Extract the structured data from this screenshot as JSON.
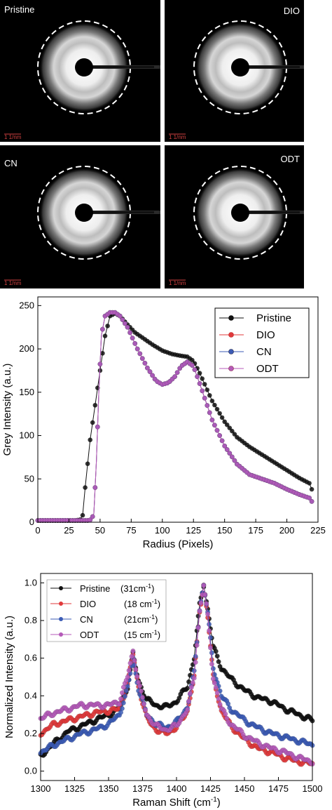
{
  "diffraction_panels": [
    {
      "label": "Pristine",
      "label_side": "left",
      "scale_label": "1 1/nm"
    },
    {
      "label": "DIO",
      "label_side": "right",
      "scale_label": "1 1/nm"
    },
    {
      "label": "CN",
      "label_side": "left",
      "scale_label": "1 1/nm"
    },
    {
      "label": "ODT",
      "label_side": "right",
      "scale_label": "1 1/nm"
    }
  ],
  "chart_data": [
    {
      "type": "line",
      "xlabel": "Radius (Pixels)",
      "ylabel": "Grey Intensity (a.u.)",
      "xlim": [
        0,
        225
      ],
      "ylim": [
        0,
        260
      ],
      "xticks": [
        0,
        25,
        50,
        75,
        100,
        125,
        150,
        175,
        200,
        225
      ],
      "yticks": [
        0,
        50,
        100,
        150,
        200,
        250
      ],
      "legend_position": "top-right",
      "series": [
        {
          "name": "Pristine",
          "color": "#111111",
          "points": [
            [
              0,
              2
            ],
            [
              30,
              2
            ],
            [
              34,
              3
            ],
            [
              36,
              8
            ],
            [
              38,
              40
            ],
            [
              42,
              95
            ],
            [
              46,
              135
            ],
            [
              50,
              175
            ],
            [
              54,
              215
            ],
            [
              58,
              238
            ],
            [
              62,
              241
            ],
            [
              66,
              238
            ],
            [
              72,
              228
            ],
            [
              78,
              219
            ],
            [
              85,
              212
            ],
            [
              92,
              205
            ],
            [
              100,
              198
            ],
            [
              108,
              194
            ],
            [
              115,
              192
            ],
            [
              120,
              191
            ],
            [
              125,
              186
            ],
            [
              130,
              172
            ],
            [
              140,
              140
            ],
            [
              150,
              116
            ],
            [
              160,
              98
            ],
            [
              170,
              87
            ],
            [
              180,
              78
            ],
            [
              190,
              69
            ],
            [
              200,
              60
            ],
            [
              210,
              51
            ],
            [
              218,
              45
            ],
            [
              220,
              38
            ]
          ]
        },
        {
          "name": "DIO",
          "color": "#e0393b",
          "points": [
            [
              0,
              2
            ],
            [
              40,
              2
            ],
            [
              43,
              3
            ],
            [
              45,
              10
            ],
            [
              47,
              70
            ],
            [
              49,
              150
            ],
            [
              51,
              215
            ],
            [
              54,
              238
            ],
            [
              58,
              242
            ],
            [
              62,
              242
            ],
            [
              66,
              238
            ],
            [
              72,
              225
            ],
            [
              80,
              200
            ],
            [
              88,
              178
            ],
            [
              95,
              163
            ],
            [
              100,
              159
            ],
            [
              105,
              161
            ],
            [
              110,
              168
            ],
            [
              115,
              180
            ],
            [
              120,
              185
            ],
            [
              125,
              180
            ],
            [
              130,
              160
            ],
            [
              140,
              118
            ],
            [
              150,
              88
            ],
            [
              160,
              67
            ],
            [
              170,
              55
            ],
            [
              180,
              50
            ],
            [
              190,
              45
            ],
            [
              200,
              38
            ],
            [
              210,
              32
            ],
            [
              218,
              28
            ],
            [
              220,
              24
            ]
          ]
        },
        {
          "name": "CN",
          "color": "#3b5bb5",
          "points": [
            [
              0,
              2
            ],
            [
              40,
              2
            ],
            [
              43,
              3
            ],
            [
              45,
              10
            ],
            [
              47,
              70
            ],
            [
              49,
              150
            ],
            [
              51,
              215
            ],
            [
              54,
              238
            ],
            [
              58,
              242
            ],
            [
              62,
              242
            ],
            [
              66,
              238
            ],
            [
              72,
              225
            ],
            [
              80,
              200
            ],
            [
              88,
              178
            ],
            [
              95,
              163
            ],
            [
              100,
              159
            ],
            [
              105,
              161
            ],
            [
              110,
              168
            ],
            [
              115,
              180
            ],
            [
              120,
              185
            ],
            [
              125,
              180
            ],
            [
              130,
              160
            ],
            [
              140,
              118
            ],
            [
              150,
              88
            ],
            [
              160,
              67
            ],
            [
              170,
              55
            ],
            [
              180,
              50
            ],
            [
              190,
              45
            ],
            [
              200,
              38
            ],
            [
              210,
              32
            ],
            [
              218,
              28
            ],
            [
              220,
              24
            ]
          ]
        },
        {
          "name": "ODT",
          "color": "#b45ab8",
          "points": [
            [
              0,
              2
            ],
            [
              40,
              2
            ],
            [
              43,
              3
            ],
            [
              45,
              10
            ],
            [
              47,
              70
            ],
            [
              49,
              150
            ],
            [
              51,
              215
            ],
            [
              54,
              238
            ],
            [
              58,
              242
            ],
            [
              62,
              242
            ],
            [
              66,
              238
            ],
            [
              72,
              225
            ],
            [
              80,
              200
            ],
            [
              88,
              178
            ],
            [
              95,
              163
            ],
            [
              100,
              159
            ],
            [
              105,
              161
            ],
            [
              110,
              168
            ],
            [
              115,
              180
            ],
            [
              120,
              185
            ],
            [
              125,
              180
            ],
            [
              130,
              160
            ],
            [
              140,
              118
            ],
            [
              150,
              88
            ],
            [
              160,
              67
            ],
            [
              170,
              55
            ],
            [
              180,
              50
            ],
            [
              190,
              45
            ],
            [
              200,
              38
            ],
            [
              210,
              32
            ],
            [
              218,
              28
            ],
            [
              220,
              24
            ]
          ]
        }
      ]
    },
    {
      "type": "line",
      "xlabel": "Raman Shift (cm",
      "xlabel_sup": "-1",
      "xlabel_end": ")",
      "ylabel": "Normalized Intensity (a.u.)",
      "xlim": [
        1300,
        1500
      ],
      "ylim": [
        -0.05,
        1.05
      ],
      "xticks": [
        1300,
        1325,
        1350,
        1375,
        1400,
        1425,
        1450,
        1475,
        1500
      ],
      "yticks": [
        0.0,
        0.2,
        0.4,
        0.6,
        0.8,
        1.0
      ],
      "ytick_labels": [
        "0.0",
        "0.2",
        "0.4",
        "0.6",
        "0.8",
        "1.0"
      ],
      "legend_position": "top-left",
      "series": [
        {
          "name": "Pristine",
          "fwhm": "(31cm",
          "fwhm_sup": "-1",
          "fwhm_end": ")",
          "color": "#111111",
          "points": [
            [
              1300,
              0.08
            ],
            [
              1310,
              0.15
            ],
            [
              1320,
              0.21
            ],
            [
              1330,
              0.24
            ],
            [
              1340,
              0.27
            ],
            [
              1350,
              0.3
            ],
            [
              1358,
              0.33
            ],
            [
              1364,
              0.45
            ],
            [
              1368,
              0.62
            ],
            [
              1372,
              0.48
            ],
            [
              1378,
              0.38
            ],
            [
              1385,
              0.35
            ],
            [
              1392,
              0.34
            ],
            [
              1400,
              0.37
            ],
            [
              1408,
              0.45
            ],
            [
              1413,
              0.6
            ],
            [
              1417,
              0.88
            ],
            [
              1420,
              0.99
            ],
            [
              1423,
              0.86
            ],
            [
              1427,
              0.66
            ],
            [
              1433,
              0.55
            ],
            [
              1440,
              0.49
            ],
            [
              1450,
              0.43
            ],
            [
              1460,
              0.39
            ],
            [
              1470,
              0.37
            ],
            [
              1480,
              0.33
            ],
            [
              1490,
              0.3
            ],
            [
              1500,
              0.27
            ]
          ]
        },
        {
          "name": "DIO",
          "fwhm": "(18 cm",
          "fwhm_sup": "-1",
          "fwhm_end": ")",
          "color": "#e0393b",
          "points": [
            [
              1300,
              0.2
            ],
            [
              1310,
              0.25
            ],
            [
              1320,
              0.27
            ],
            [
              1330,
              0.29
            ],
            [
              1340,
              0.31
            ],
            [
              1350,
              0.32
            ],
            [
              1358,
              0.33
            ],
            [
              1364,
              0.46
            ],
            [
              1368,
              0.62
            ],
            [
              1372,
              0.45
            ],
            [
              1378,
              0.28
            ],
            [
              1385,
              0.22
            ],
            [
              1392,
              0.2
            ],
            [
              1400,
              0.23
            ],
            [
              1408,
              0.32
            ],
            [
              1413,
              0.5
            ],
            [
              1417,
              0.85
            ],
            [
              1420,
              0.99
            ],
            [
              1423,
              0.82
            ],
            [
              1427,
              0.5
            ],
            [
              1433,
              0.32
            ],
            [
              1440,
              0.24
            ],
            [
              1450,
              0.17
            ],
            [
              1460,
              0.12
            ],
            [
              1470,
              0.1
            ],
            [
              1480,
              0.07
            ],
            [
              1490,
              0.05
            ],
            [
              1500,
              0.04
            ]
          ]
        },
        {
          "name": "CN",
          "fwhm": "(21cm",
          "fwhm_sup": "-1",
          "fwhm_end": ")",
          "color": "#3b5bb5",
          "points": [
            [
              1300,
              0.1
            ],
            [
              1310,
              0.14
            ],
            [
              1320,
              0.17
            ],
            [
              1330,
              0.2
            ],
            [
              1340,
              0.22
            ],
            [
              1350,
              0.25
            ],
            [
              1358,
              0.3
            ],
            [
              1364,
              0.44
            ],
            [
              1368,
              0.6
            ],
            [
              1372,
              0.44
            ],
            [
              1378,
              0.3
            ],
            [
              1385,
              0.25
            ],
            [
              1392,
              0.23
            ],
            [
              1400,
              0.26
            ],
            [
              1408,
              0.34
            ],
            [
              1413,
              0.52
            ],
            [
              1417,
              0.86
            ],
            [
              1420,
              0.99
            ],
            [
              1423,
              0.84
            ],
            [
              1427,
              0.55
            ],
            [
              1433,
              0.4
            ],
            [
              1440,
              0.33
            ],
            [
              1450,
              0.27
            ],
            [
              1460,
              0.23
            ],
            [
              1470,
              0.2
            ],
            [
              1480,
              0.18
            ],
            [
              1490,
              0.16
            ],
            [
              1500,
              0.14
            ]
          ]
        },
        {
          "name": "ODT",
          "fwhm": "(15 cm",
          "fwhm_sup": "-1",
          "fwhm_end": ")",
          "color": "#b45ab8",
          "points": [
            [
              1300,
              0.28
            ],
            [
              1310,
              0.31
            ],
            [
              1320,
              0.33
            ],
            [
              1330,
              0.35
            ],
            [
              1340,
              0.35
            ],
            [
              1350,
              0.35
            ],
            [
              1358,
              0.37
            ],
            [
              1364,
              0.5
            ],
            [
              1368,
              0.64
            ],
            [
              1372,
              0.47
            ],
            [
              1378,
              0.3
            ],
            [
              1385,
              0.24
            ],
            [
              1392,
              0.22
            ],
            [
              1400,
              0.24
            ],
            [
              1408,
              0.33
            ],
            [
              1413,
              0.5
            ],
            [
              1417,
              0.85
            ],
            [
              1420,
              0.99
            ],
            [
              1423,
              0.82
            ],
            [
              1427,
              0.5
            ],
            [
              1433,
              0.33
            ],
            [
              1440,
              0.25
            ],
            [
              1450,
              0.19
            ],
            [
              1460,
              0.15
            ],
            [
              1470,
              0.12
            ],
            [
              1480,
              0.1
            ],
            [
              1490,
              0.07
            ],
            [
              1500,
              0.05
            ]
          ]
        }
      ]
    }
  ]
}
